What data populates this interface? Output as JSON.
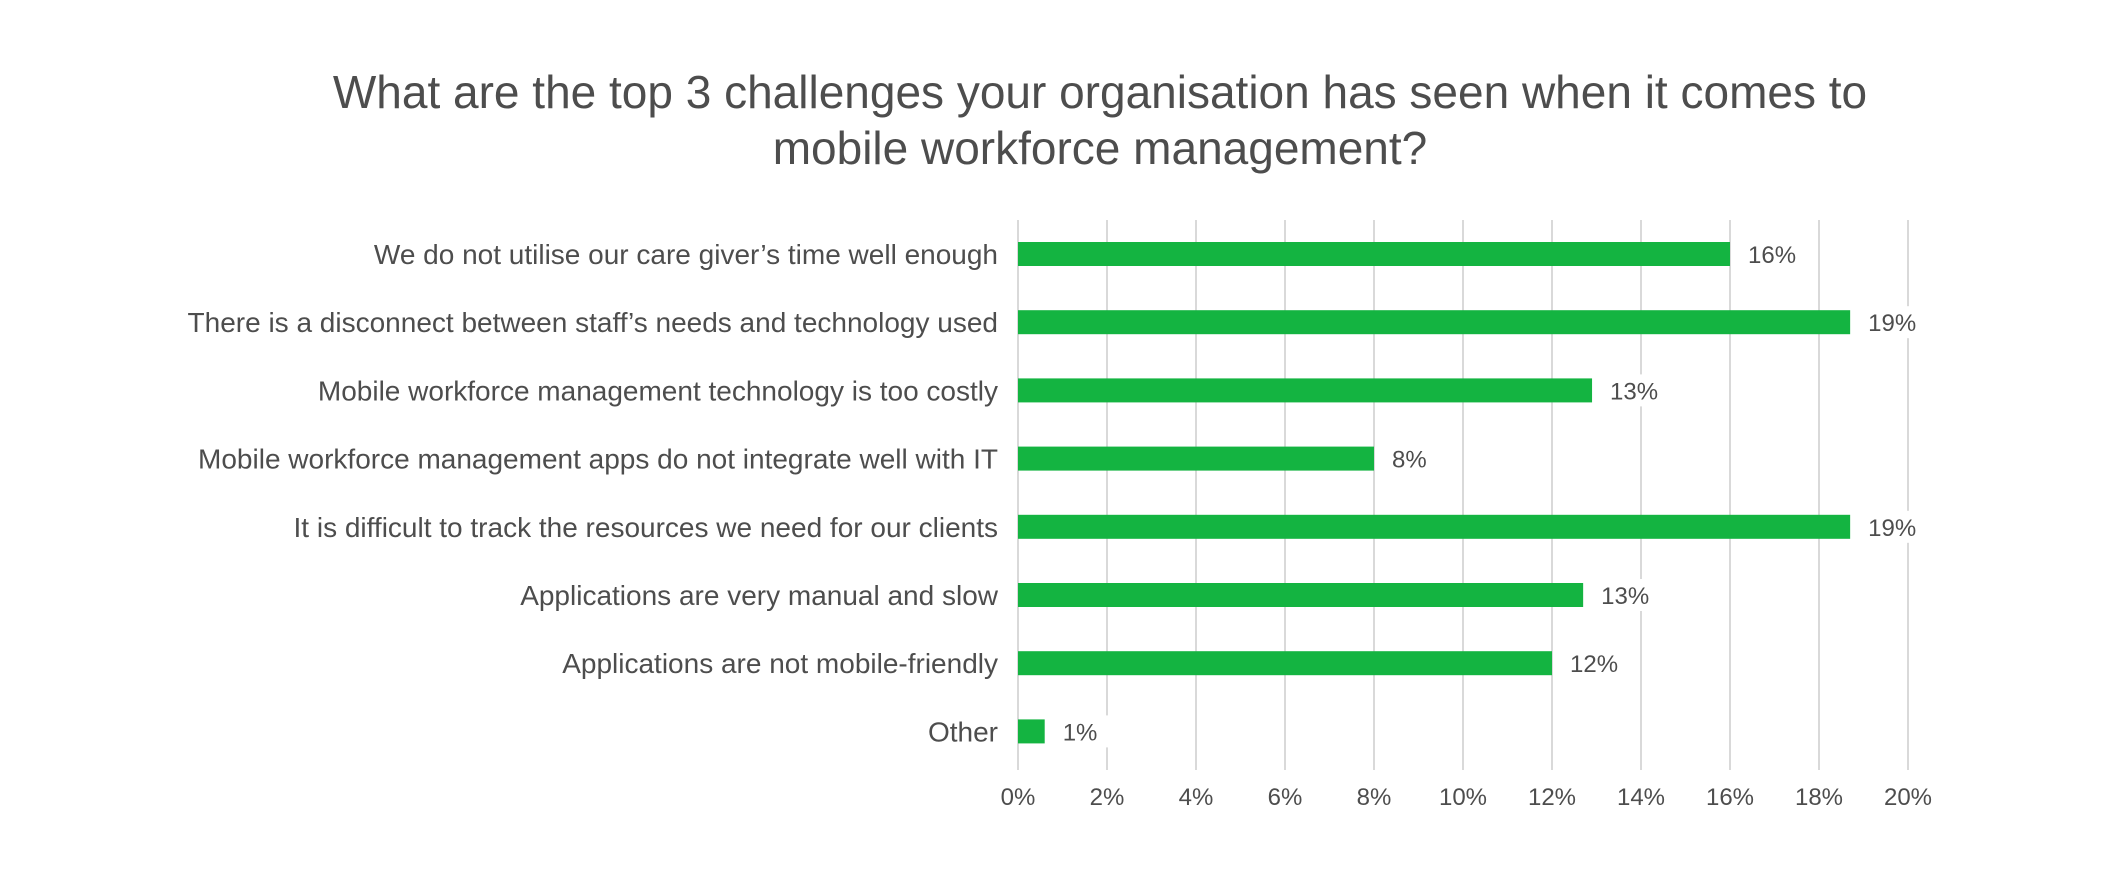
{
  "chart_data": {
    "type": "bar",
    "orientation": "horizontal",
    "title": "What are the top 3 challenges your organisation has seen when it comes to mobile workforce management?",
    "title_lines": [
      "What are the top 3 challenges your organisation has seen when it comes to",
      "mobile workforce management?"
    ],
    "categories": [
      "We do not utilise our care giver’s time well enough",
      "There is a disconnect between staff’s needs and technology used",
      "Mobile workforce management technology is too costly",
      "Mobile workforce management apps do not integrate well with IT",
      "It is difficult to track the resources we need for our clients",
      "Applications are very manual and slow",
      "Applications are not mobile-friendly",
      "Other"
    ],
    "values": [
      16,
      18.7,
      12.9,
      8,
      18.7,
      12.7,
      12,
      0.6
    ],
    "data_labels": [
      "16%",
      "19%",
      "13%",
      "8%",
      "19%",
      "13%",
      "12%",
      "1%"
    ],
    "xlim": [
      0,
      20
    ],
    "x_ticks": [
      "0%",
      "2%",
      "4%",
      "6%",
      "8%",
      "10%",
      "12%",
      "14%",
      "16%",
      "18%",
      "20%"
    ],
    "xlabel": "",
    "ylabel": "",
    "grid": "vertical",
    "legend": "none",
    "bar_color": "#14b441",
    "grid_color": "#d9d9d9"
  }
}
